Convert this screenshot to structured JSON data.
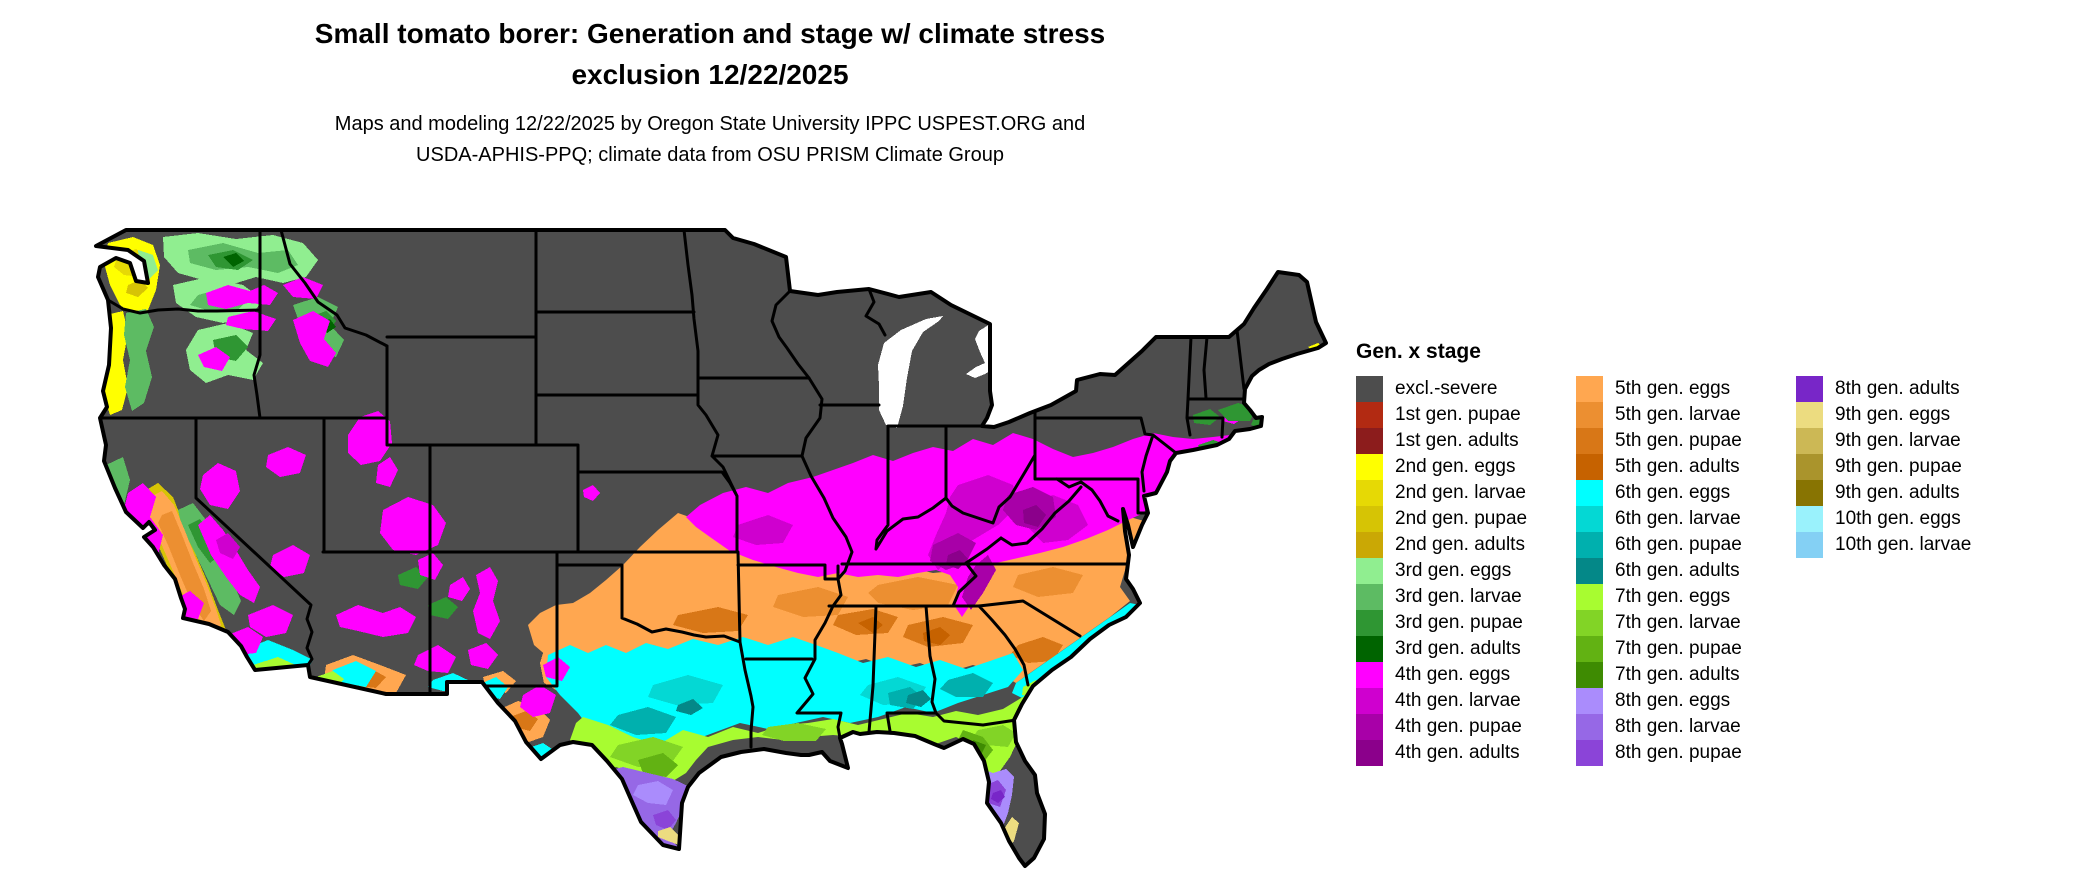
{
  "header": {
    "title_line1": "Small tomato borer: Generation and stage w/ climate stress",
    "title_line2": "exclusion 12/22/2025",
    "subtitle_line1": "Maps and modeling 12/22/2025 by Oregon State University IPPC USPEST.ORG and",
    "subtitle_line2": "USDA-APHIS-PPQ; climate data from OSU PRISM Climate Group"
  },
  "legend": {
    "title": "Gen. x stage",
    "columns": [
      {
        "items": [
          {
            "label": "excl.-severe",
            "color": "#4d4d4d"
          },
          {
            "label": "1st gen. pupae",
            "color": "#b22a12"
          },
          {
            "label": "1st gen. adults",
            "color": "#8c1c1c"
          },
          {
            "label": "2nd gen. eggs",
            "color": "#ffff00"
          },
          {
            "label": "2nd gen. larvae",
            "color": "#e6d905"
          },
          {
            "label": "2nd gen. pupae",
            "color": "#d6c405"
          },
          {
            "label": "2nd gen. adults",
            "color": "#caa805"
          },
          {
            "label": "3rd gen. eggs",
            "color": "#90ee90"
          },
          {
            "label": "3rd gen. larvae",
            "color": "#5dbb63"
          },
          {
            "label": "3rd gen. pupae",
            "color": "#2f9633"
          },
          {
            "label": "3rd gen. adults",
            "color": "#006400"
          },
          {
            "label": "4th gen. eggs",
            "color": "#ff00ff"
          },
          {
            "label": "4th gen. larvae",
            "color": "#cf00cf"
          },
          {
            "label": "4th gen. pupae",
            "color": "#a800a8"
          },
          {
            "label": "4th gen. adults",
            "color": "#8b008b"
          }
        ]
      },
      {
        "items": [
          {
            "label": "5th gen. eggs",
            "color": "#ffa750"
          },
          {
            "label": "5th gen. larvae",
            "color": "#ec8f31"
          },
          {
            "label": "5th gen. pupae",
            "color": "#d87717"
          },
          {
            "label": "5th gen. adults",
            "color": "#c66200"
          },
          {
            "label": "6th gen. eggs",
            "color": "#00ffff"
          },
          {
            "label": "6th gen. larvae",
            "color": "#04d8d4"
          },
          {
            "label": "6th gen. pupae",
            "color": "#00b0ae"
          },
          {
            "label": "6th gen. adults",
            "color": "#048888"
          },
          {
            "label": "7th gen. eggs",
            "color": "#a8fc30"
          },
          {
            "label": "7th gen. larvae",
            "color": "#82d426"
          },
          {
            "label": "7th gen. pupae",
            "color": "#62b213"
          },
          {
            "label": "7th gen. adults",
            "color": "#3e8b02"
          },
          {
            "label": "8th gen. eggs",
            "color": "#aa8cfc"
          },
          {
            "label": "8th gen. larvae",
            "color": "#9668e6"
          },
          {
            "label": "8th gen. pupae",
            "color": "#8b44d8"
          }
        ]
      },
      {
        "items": [
          {
            "label": "8th gen. adults",
            "color": "#7826c8"
          },
          {
            "label": "9th gen. eggs",
            "color": "#ecdc80"
          },
          {
            "label": "9th gen. larvae",
            "color": "#ccb855"
          },
          {
            "label": "9th gen. pupae",
            "color": "#aa942c"
          },
          {
            "label": "9th gen. adults",
            "color": "#887402"
          },
          {
            "label": "10th gen. eggs",
            "color": "#9af2fc"
          },
          {
            "label": "10th gen. larvae",
            "color": "#84d0f4"
          }
        ]
      }
    ]
  },
  "palette": {
    "excl_severe": "#4d4d4d",
    "gen2_eggs": "#ffff00",
    "gen2_larvae": "#e6d905",
    "gen2_pupae": "#d6c405",
    "gen2_adults": "#caa805",
    "gen3_eggs": "#90ee90",
    "gen3_larvae": "#5dbb63",
    "gen3_pupae": "#2f9633",
    "gen3_adults": "#006400",
    "gen4_eggs": "#ff00ff",
    "gen4_larvae": "#cf00cf",
    "gen4_pupae": "#a800a8",
    "gen4_adults": "#8b008b",
    "gen5_eggs": "#ffa750",
    "gen5_larvae": "#ec8f31",
    "gen5_pupae": "#d87717",
    "gen5_adults": "#c66200",
    "gen6_eggs": "#00ffff",
    "gen6_larvae": "#04d8d4",
    "gen6_pupae": "#00b0ae",
    "gen6_adults": "#048888",
    "gen7_eggs": "#a8fc30",
    "gen7_larvae": "#82d426",
    "gen7_pupae": "#62b213",
    "gen7_adults": "#3e8b02",
    "gen8_eggs": "#aa8cfc",
    "gen8_larvae": "#9668e6",
    "gen8_pupae": "#8b44d8",
    "gen8_adults": "#7826c8",
    "gen9_eggs": "#ecdc80",
    "gen10_larvae": "#84d0f4",
    "border": "#000000",
    "water": "#ffffff"
  }
}
